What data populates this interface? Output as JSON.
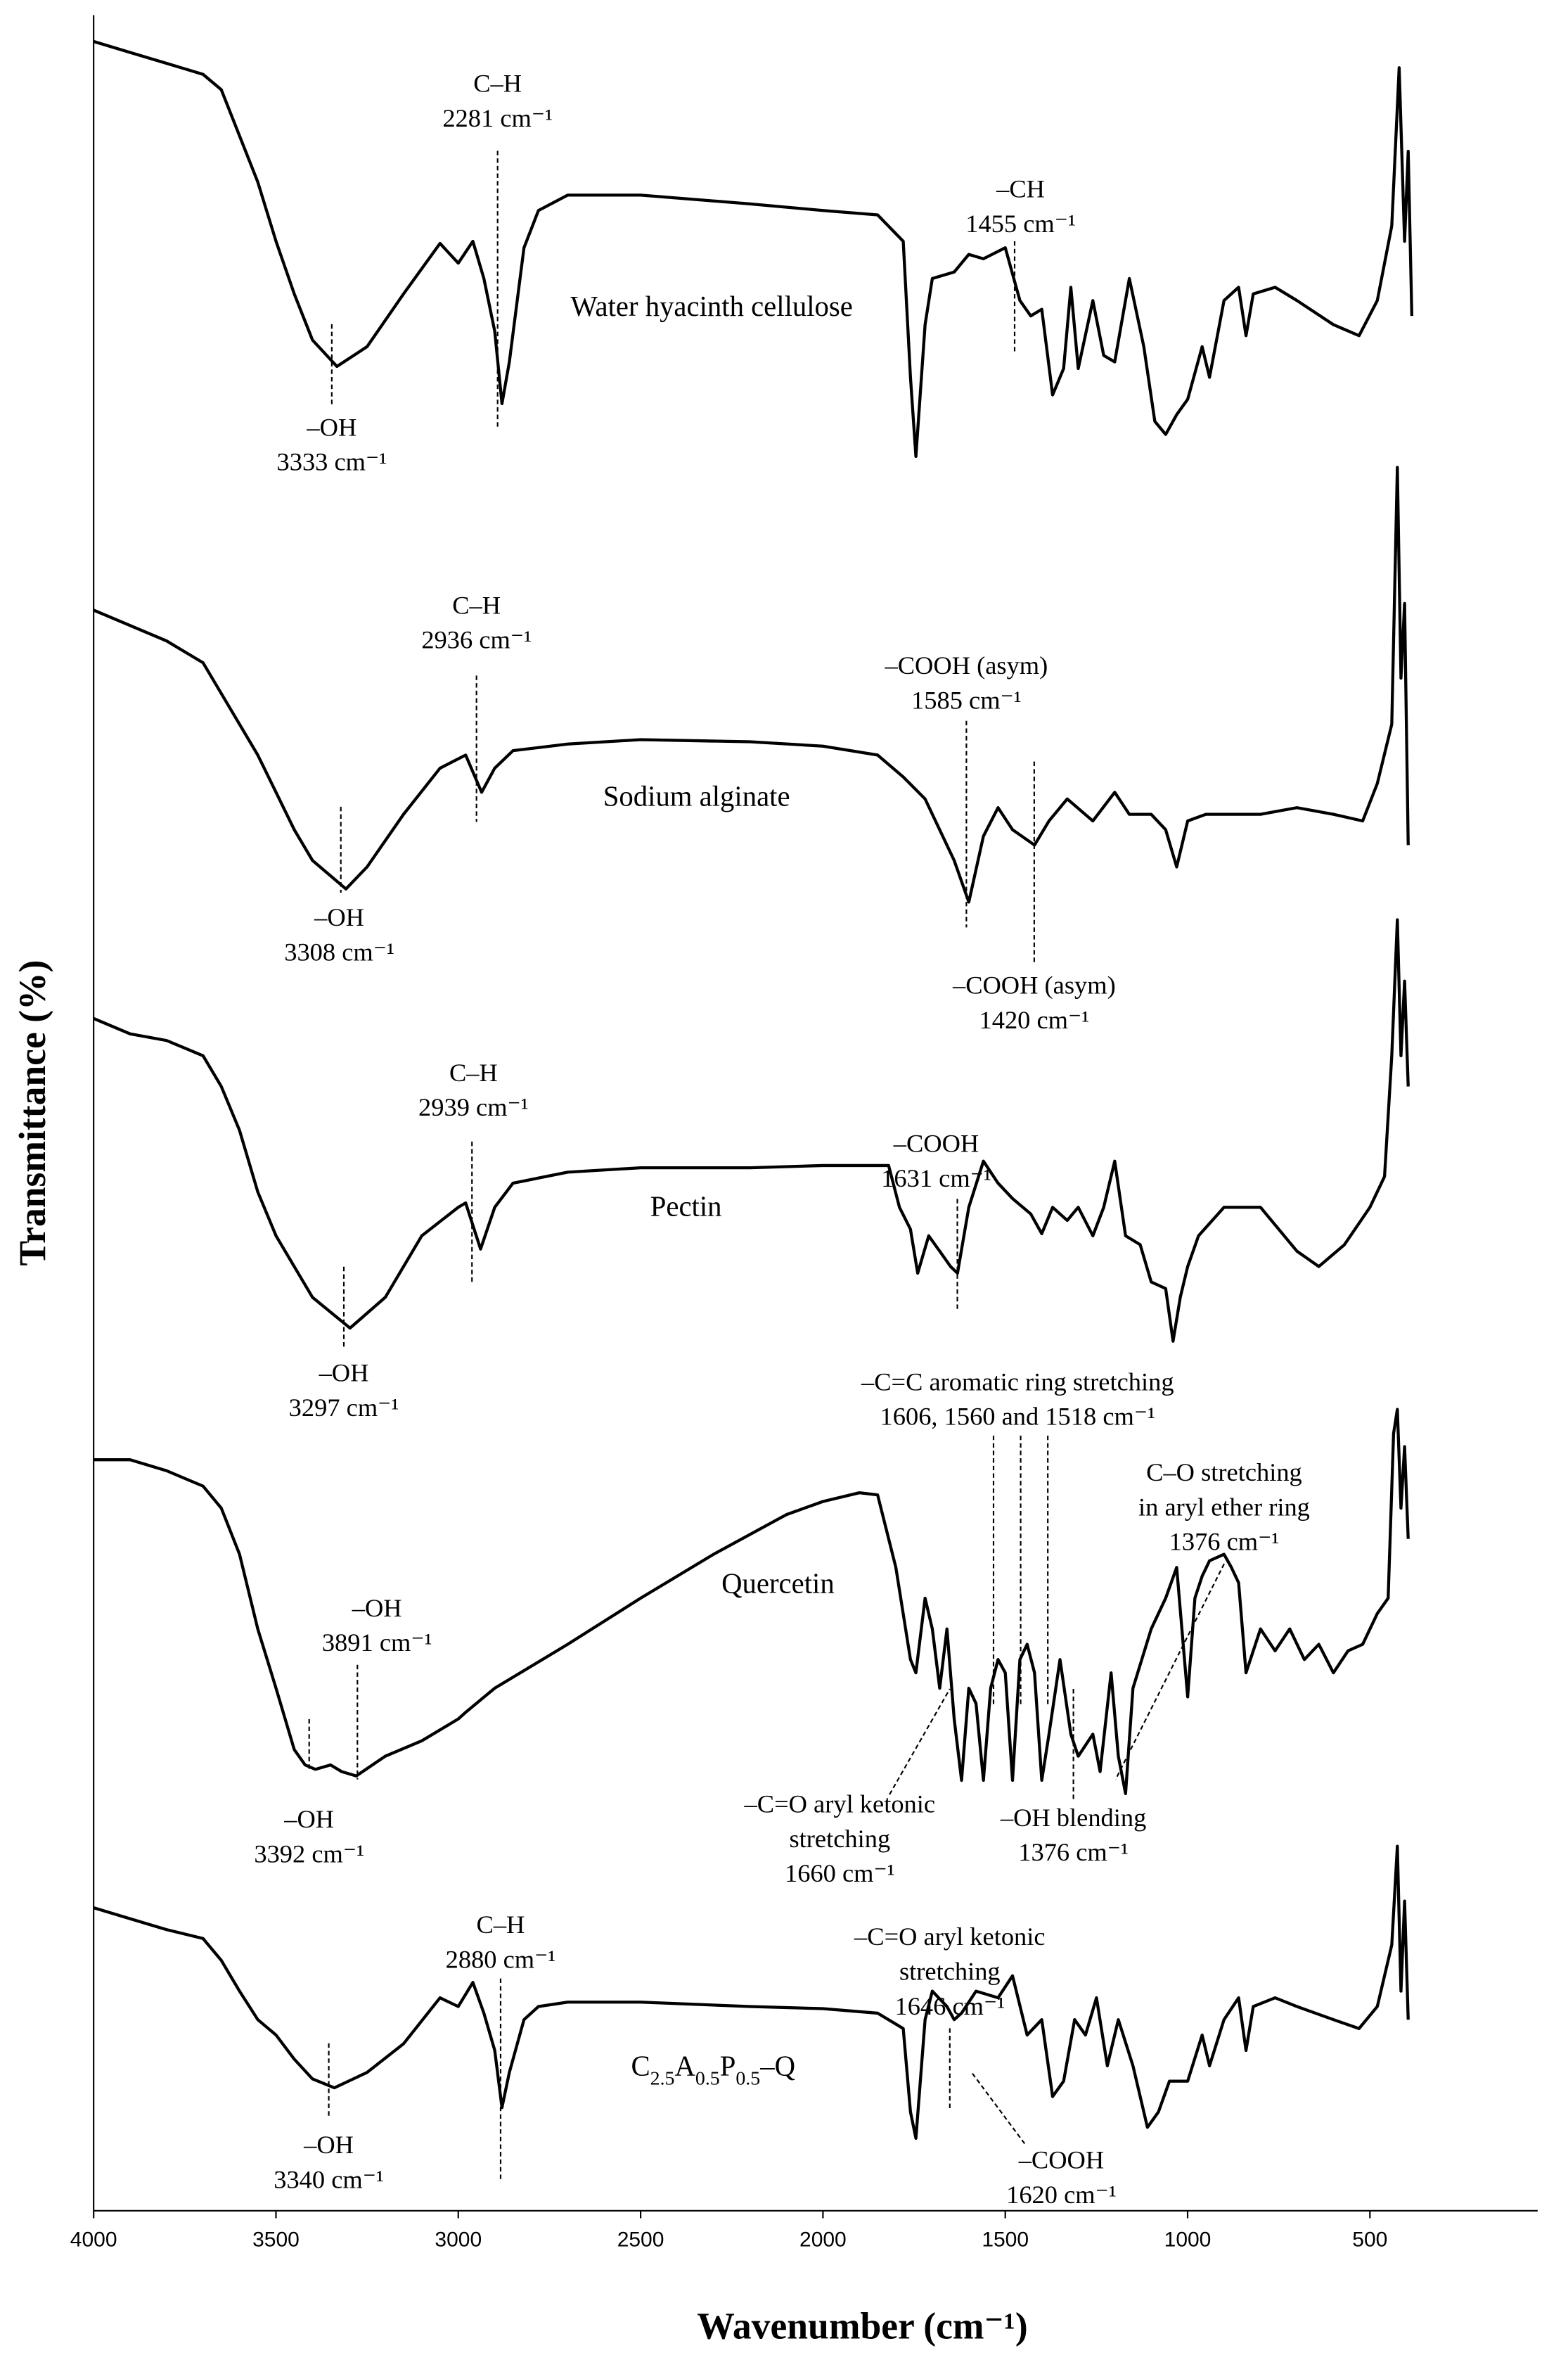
{
  "chart_data": {
    "type": "line",
    "xlabel": "Wavenumber (cm⁻¹)",
    "ylabel": "Transmittance (%)",
    "xlim": [
      4000,
      40
    ],
    "xticks": [
      4000,
      3500,
      3000,
      2500,
      2000,
      1500,
      1000,
      500
    ],
    "ylim": [
      0,
      100
    ],
    "series": [
      {
        "name": "Water hyacinth cellulose",
        "color": "#000000",
        "x": [
          4000,
          3900,
          3800,
          3700,
          3650,
          3600,
          3550,
          3500,
          3450,
          3400,
          3333,
          3250,
          3150,
          3050,
          3000,
          2960,
          2930,
          2900,
          2880,
          2860,
          2820,
          2780,
          2700,
          2500,
          2200,
          2000,
          1850,
          1780,
          1760,
          1745,
          1720,
          1700,
          1640,
          1600,
          1560,
          1500,
          1460,
          1430,
          1400,
          1370,
          1340,
          1320,
          1300,
          1260,
          1230,
          1200,
          1160,
          1120,
          1090,
          1060,
          1030,
          1000,
          960,
          940,
          900,
          860,
          840,
          820,
          760,
          700,
          600,
          530,
          480,
          440,
          420,
          405,
          395,
          385
        ],
        "values": [
          98.8,
          98.3,
          97.8,
          97.3,
          96.6,
          94.5,
          92.4,
          89.7,
          87.3,
          85.2,
          84.0,
          84.9,
          87.3,
          89.6,
          88.7,
          89.7,
          88.0,
          85.6,
          82.3,
          84.2,
          89.4,
          91.1,
          91.8,
          91.8,
          91.4,
          91.1,
          90.9,
          89.7,
          83.5,
          79.9,
          85.9,
          88.0,
          88.3,
          89.1,
          88.9,
          89.4,
          87.0,
          86.3,
          86.6,
          82.7,
          83.9,
          87.6,
          83.9,
          87.0,
          84.5,
          84.2,
          88.0,
          84.9,
          81.5,
          80.9,
          81.8,
          82.5,
          84.9,
          83.5,
          87.0,
          87.6,
          85.4,
          87.3,
          87.6,
          87.0,
          85.9,
          85.4,
          87.0,
          90.4,
          97.6,
          89.7,
          93.8,
          86.3
        ]
      },
      {
        "name": "Sodium alginate",
        "color": "#000000",
        "x": [
          4000,
          3900,
          3800,
          3700,
          3650,
          3600,
          3550,
          3500,
          3450,
          3400,
          3308,
          3250,
          3150,
          3050,
          2980,
          2936,
          2900,
          2850,
          2700,
          2500,
          2200,
          2000,
          1850,
          1780,
          1720,
          1640,
          1600,
          1560,
          1520,
          1480,
          1420,
          1380,
          1330,
          1260,
          1200,
          1160,
          1100,
          1060,
          1030,
          1000,
          950,
          900,
          800,
          700,
          600,
          520,
          480,
          440,
          425,
          415,
          405,
          395
        ],
        "values": [
          72.9,
          72.2,
          71.5,
          70.5,
          69.1,
          67.7,
          66.3,
          64.6,
          62.9,
          61.5,
          60.2,
          61.2,
          63.6,
          65.7,
          66.3,
          64.6,
          65.7,
          66.5,
          66.8,
          67.0,
          66.9,
          66.7,
          66.3,
          65.3,
          64.3,
          61.5,
          59.6,
          62.6,
          63.9,
          62.9,
          62.2,
          63.3,
          64.3,
          63.3,
          64.6,
          63.6,
          63.6,
          62.9,
          61.2,
          63.3,
          63.6,
          63.6,
          63.6,
          63.9,
          63.6,
          63.3,
          65.0,
          67.7,
          79.4,
          69.8,
          73.2,
          62.2
        ]
      },
      {
        "name": "Pectin",
        "color": "#000000",
        "x": [
          4000,
          3900,
          3800,
          3700,
          3650,
          3600,
          3550,
          3500,
          3450,
          3400,
          3297,
          3200,
          3100,
          3000,
          2980,
          2939,
          2900,
          2850,
          2700,
          2500,
          2200,
          2000,
          1820,
          1790,
          1760,
          1740,
          1710,
          1680,
          1650,
          1631,
          1600,
          1560,
          1520,
          1480,
          1430,
          1400,
          1370,
          1330,
          1300,
          1260,
          1230,
          1200,
          1170,
          1130,
          1100,
          1060,
          1040,
          1020,
          1000,
          970,
          900,
          800,
          700,
          640,
          570,
          500,
          460,
          440,
          425,
          415,
          405,
          395
        ],
        "values": [
          54.3,
          53.6,
          53.3,
          52.6,
          51.2,
          49.2,
          46.4,
          44.4,
          43.0,
          41.6,
          40.2,
          41.6,
          44.4,
          45.7,
          45.9,
          43.8,
          45.7,
          46.8,
          47.3,
          47.5,
          47.5,
          47.6,
          47.6,
          45.7,
          44.7,
          42.7,
          44.4,
          43.7,
          43.0,
          42.7,
          45.7,
          47.8,
          46.8,
          46.1,
          45.4,
          44.5,
          45.7,
          45.1,
          45.7,
          44.4,
          45.7,
          47.8,
          44.4,
          44.0,
          42.3,
          42.0,
          39.6,
          41.6,
          43.0,
          44.4,
          45.7,
          45.7,
          43.7,
          43.0,
          44.0,
          45.7,
          47.1,
          52.6,
          58.8,
          52.6,
          56.0,
          51.2
        ]
      },
      {
        "name": "Quercetin",
        "color": "#000000",
        "x": [
          4000,
          3900,
          3800,
          3700,
          3650,
          3600,
          3550,
          3500,
          3450,
          3420,
          3392,
          3350,
          3320,
          3280,
          3200,
          3100,
          3000,
          2980,
          2900,
          2700,
          2500,
          2300,
          2100,
          2000,
          1900,
          1850,
          1800,
          1760,
          1745,
          1720,
          1700,
          1680,
          1660,
          1640,
          1620,
          1600,
          1580,
          1560,
          1540,
          1520,
          1500,
          1480,
          1460,
          1440,
          1420,
          1400,
          1380,
          1350,
          1320,
          1300,
          1260,
          1240,
          1210,
          1190,
          1170,
          1150,
          1100,
          1060,
          1030,
          1000,
          980,
          960,
          940,
          900,
          880,
          860,
          840,
          800,
          760,
          720,
          680,
          640,
          600,
          560,
          520,
          480,
          450,
          435,
          425,
          415,
          405,
          395
        ],
        "values": [
          34.2,
          34.2,
          33.7,
          33.0,
          32.0,
          29.9,
          26.5,
          23.8,
          21.0,
          20.3,
          20.1,
          20.3,
          20.0,
          19.8,
          20.7,
          21.4,
          22.4,
          22.7,
          23.8,
          25.8,
          27.9,
          29.9,
          31.7,
          32.3,
          32.7,
          32.6,
          29.3,
          25.1,
          24.5,
          27.9,
          26.5,
          23.8,
          26.5,
          22.4,
          19.6,
          23.8,
          23.1,
          19.6,
          23.8,
          25.1,
          24.5,
          19.6,
          25.1,
          25.8,
          24.5,
          19.6,
          21.7,
          25.1,
          21.7,
          20.7,
          21.7,
          20.0,
          24.5,
          20.7,
          19.0,
          23.8,
          26.5,
          27.9,
          29.3,
          23.4,
          27.9,
          28.9,
          29.6,
          29.9,
          29.3,
          28.6,
          24.5,
          26.5,
          25.5,
          26.5,
          25.1,
          25.8,
          24.5,
          25.5,
          25.8,
          27.2,
          27.9,
          35.4,
          36.5,
          32.0,
          34.8,
          30.6
        ]
      },
      {
        "name": "C2.5A0.5P0.5–Q",
        "color": "#000000",
        "x": [
          4000,
          3900,
          3800,
          3700,
          3650,
          3600,
          3550,
          3500,
          3450,
          3400,
          3340,
          3250,
          3150,
          3050,
          3000,
          2960,
          2930,
          2900,
          2880,
          2860,
          2820,
          2780,
          2700,
          2500,
          2200,
          2000,
          1850,
          1780,
          1760,
          1745,
          1720,
          1700,
          1660,
          1640,
          1620,
          1580,
          1520,
          1480,
          1440,
          1400,
          1370,
          1340,
          1310,
          1280,
          1250,
          1220,
          1190,
          1150,
          1110,
          1080,
          1050,
          1000,
          960,
          940,
          900,
          860,
          840,
          820,
          760,
          700,
          600,
          530,
          480,
          440,
          425,
          415,
          405,
          395
        ],
        "values": [
          13.8,
          13.3,
          12.8,
          12.4,
          11.4,
          10.0,
          8.7,
          8.0,
          6.9,
          6.0,
          5.6,
          6.3,
          7.6,
          9.7,
          9.3,
          10.4,
          9.0,
          7.3,
          4.7,
          6.3,
          8.7,
          9.3,
          9.5,
          9.5,
          9.3,
          9.2,
          9.0,
          8.3,
          4.5,
          3.3,
          8.7,
          10.0,
          9.3,
          8.7,
          9.0,
          10.0,
          9.7,
          10.7,
          8.0,
          8.7,
          5.2,
          5.9,
          8.7,
          8.0,
          9.7,
          6.6,
          8.7,
          6.6,
          3.8,
          4.5,
          5.9,
          5.9,
          8.0,
          6.6,
          8.7,
          9.7,
          7.3,
          9.3,
          9.7,
          9.3,
          8.7,
          8.3,
          9.3,
          12.1,
          16.6,
          10.0,
          14.1,
          8.7
        ]
      }
    ],
    "annotations": [
      {
        "text": [
          "C–H",
          "2281 cm⁻¹"
        ]
      },
      {
        "text": [
          "–OH",
          "3333 cm⁻¹"
        ]
      },
      {
        "text": [
          "–CH",
          "1455 cm⁻¹"
        ]
      },
      {
        "text": [
          "C–H",
          "2936 cm⁻¹"
        ]
      },
      {
        "text": [
          "–OH",
          "3308 cm⁻¹"
        ]
      },
      {
        "text": [
          "–COOH (asym)",
          "1585 cm⁻¹"
        ]
      },
      {
        "text": [
          "–COOH (asym)",
          "1420 cm⁻¹"
        ]
      },
      {
        "text": [
          "C–H",
          "2939 cm⁻¹"
        ]
      },
      {
        "text": [
          "–OH",
          "3297 cm⁻¹"
        ]
      },
      {
        "text": [
          "–COOH",
          "1631 cm⁻¹"
        ]
      },
      {
        "text": [
          "–C=C aromatic ring stretching",
          "1606, 1560 and 1518 cm⁻¹"
        ]
      },
      {
        "text": [
          "C–O stretching",
          "in aryl ether ring",
          "1376 cm⁻¹"
        ]
      },
      {
        "text": [
          "–OH",
          "3891 cm⁻¹"
        ]
      },
      {
        "text": [
          "–OH",
          "3392 cm⁻¹"
        ]
      },
      {
        "text": [
          "–C=O aryl ketonic",
          "stretching",
          "1660 cm⁻¹"
        ]
      },
      {
        "text": [
          "–OH blending",
          "1376 cm⁻¹"
        ]
      },
      {
        "text": [
          "C–H",
          "2880 cm⁻¹"
        ]
      },
      {
        "text": [
          "–C=O aryl ketonic",
          "stretching",
          "1646 cm⁻¹"
        ]
      },
      {
        "text": [
          "–OH",
          "3340 cm⁻¹"
        ]
      },
      {
        "text": [
          "–COOH",
          "1620 cm⁻¹"
        ]
      }
    ]
  }
}
